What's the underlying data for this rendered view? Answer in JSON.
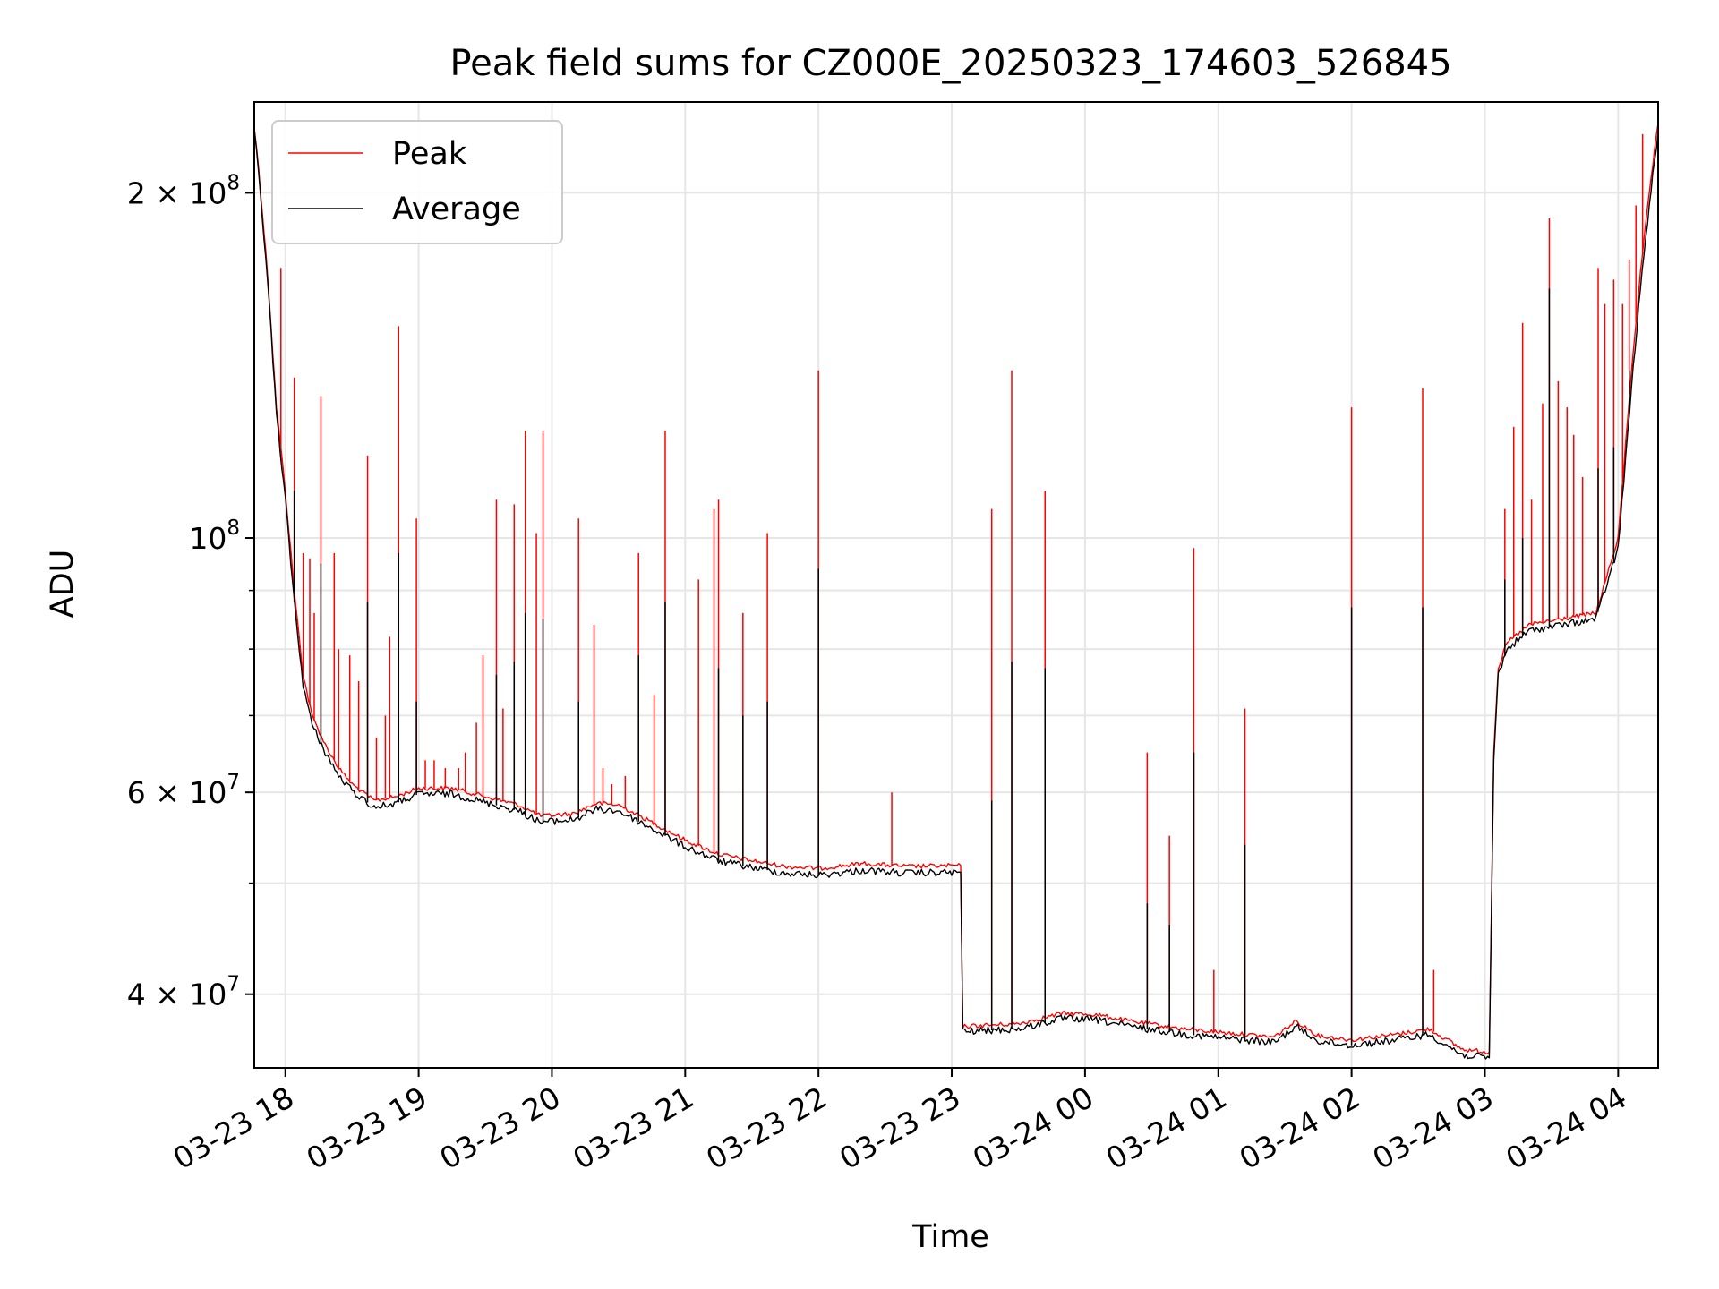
{
  "chart_data": {
    "type": "line",
    "title": "Peak field sums for CZ000E_20250323_174603_526845",
    "xlabel": "Time",
    "ylabel": "ADU",
    "yscale": "log",
    "ylim": [
      34500000,
      240000000
    ],
    "xlim": [
      "2025-03-23 17:46",
      "2025-03-24 04:18"
    ],
    "grid": true,
    "legend_position": "top-left",
    "x_ticks": [
      {
        "t": "2025-03-23 18:00",
        "label": "03-23 18"
      },
      {
        "t": "2025-03-23 19:00",
        "label": "03-23 19"
      },
      {
        "t": "2025-03-23 20:00",
        "label": "03-23 20"
      },
      {
        "t": "2025-03-23 21:00",
        "label": "03-23 21"
      },
      {
        "t": "2025-03-23 22:00",
        "label": "03-23 22"
      },
      {
        "t": "2025-03-23 23:00",
        "label": "03-23 23"
      },
      {
        "t": "2025-03-24 00:00",
        "label": "03-24 00"
      },
      {
        "t": "2025-03-24 01:00",
        "label": "03-24 01"
      },
      {
        "t": "2025-03-24 02:00",
        "label": "03-24 02"
      },
      {
        "t": "2025-03-24 03:00",
        "label": "03-24 03"
      },
      {
        "t": "2025-03-24 04:00",
        "label": "03-24 04"
      }
    ],
    "y_ticks_major": [
      {
        "v": 40000000,
        "base": "4 × 10",
        "exp": "7"
      },
      {
        "v": 60000000,
        "base": "6 × 10",
        "exp": "7"
      },
      {
        "v": 100000000,
        "base": "10",
        "exp": "8"
      },
      {
        "v": 200000000,
        "base": "2 × 10",
        "exp": "8"
      }
    ],
    "y_gridlines_minor": [
      50000000,
      70000000,
      80000000,
      90000000
    ],
    "series": [
      {
        "name": "Peak",
        "color": "#ff0000",
        "baseline": [
          [
            "2025-03-23 17:46",
            228000000
          ],
          [
            "2025-03-23 17:48",
            210000000
          ],
          [
            "2025-03-23 17:52",
            170000000
          ],
          [
            "2025-03-23 17:56",
            130000000
          ],
          [
            "2025-03-23 18:00",
            110000000
          ],
          [
            "2025-03-23 18:04",
            90000000
          ],
          [
            "2025-03-23 18:08",
            76000000
          ],
          [
            "2025-03-23 18:12",
            70000000
          ],
          [
            "2025-03-23 18:18",
            66000000
          ],
          [
            "2025-03-23 18:24",
            63000000
          ],
          [
            "2025-03-23 18:30",
            61000000
          ],
          [
            "2025-03-23 18:40",
            59000000
          ],
          [
            "2025-03-23 18:50",
            59500000
          ],
          [
            "2025-03-23 19:00",
            60500000
          ],
          [
            "2025-03-23 19:15",
            60500000
          ],
          [
            "2025-03-23 19:30",
            59500000
          ],
          [
            "2025-03-23 19:45",
            58500000
          ],
          [
            "2025-03-23 19:55",
            57200000
          ],
          [
            "2025-03-23 20:10",
            57500000
          ],
          [
            "2025-03-23 20:20",
            58700000
          ],
          [
            "2025-03-23 20:30",
            58500000
          ],
          [
            "2025-03-23 20:45",
            56500000
          ],
          [
            "2025-03-23 21:00",
            54500000
          ],
          [
            "2025-03-23 21:15",
            53000000
          ],
          [
            "2025-03-23 21:30",
            52300000
          ],
          [
            "2025-03-23 21:45",
            51700000
          ],
          [
            "2025-03-23 22:00",
            51500000
          ],
          [
            "2025-03-23 22:20",
            52000000
          ],
          [
            "2025-03-23 22:40",
            51700000
          ],
          [
            "2025-03-23 23:04",
            51800000
          ],
          [
            "2025-03-23 23:05",
            37500000
          ],
          [
            "2025-03-23 23:30",
            37700000
          ],
          [
            "2025-03-23 23:50",
            38500000
          ],
          [
            "2025-03-24 00:05",
            38400000
          ],
          [
            "2025-03-24 00:20",
            37900000
          ],
          [
            "2025-03-24 00:45",
            37300000
          ],
          [
            "2025-03-24 01:05",
            37000000
          ],
          [
            "2025-03-24 01:25",
            36700000
          ],
          [
            "2025-03-24 01:35",
            37900000
          ],
          [
            "2025-03-24 01:45",
            36800000
          ],
          [
            "2025-03-24 02:00",
            36500000
          ],
          [
            "2025-03-24 02:20",
            36900000
          ],
          [
            "2025-03-24 02:35",
            37300000
          ],
          [
            "2025-03-24 02:50",
            35800000
          ],
          [
            "2025-03-24 03:02",
            35600000
          ],
          [
            "2025-03-24 03:04",
            65000000
          ],
          [
            "2025-03-24 03:06",
            77000000
          ],
          [
            "2025-03-24 03:10",
            81000000
          ],
          [
            "2025-03-24 03:20",
            84000000
          ],
          [
            "2025-03-24 03:35",
            85000000
          ],
          [
            "2025-03-24 03:50",
            86000000
          ],
          [
            "2025-03-24 04:00",
            100000000
          ],
          [
            "2025-03-24 04:06",
            140000000
          ],
          [
            "2025-03-24 04:10",
            170000000
          ],
          [
            "2025-03-24 04:14",
            200000000
          ],
          [
            "2025-03-24 04:18",
            230000000
          ]
        ],
        "spikes": [
          [
            "2025-03-23 17:58",
            172000000
          ],
          [
            "2025-03-23 18:04",
            138000000
          ],
          [
            "2025-03-23 18:08",
            97000000
          ],
          [
            "2025-03-23 18:11",
            96000000
          ],
          [
            "2025-03-23 18:13",
            86000000
          ],
          [
            "2025-03-23 18:16",
            133000000
          ],
          [
            "2025-03-23 18:22",
            97000000
          ],
          [
            "2025-03-23 18:24",
            80000000
          ],
          [
            "2025-03-23 18:29",
            79000000
          ],
          [
            "2025-03-23 18:33",
            75000000
          ],
          [
            "2025-03-23 18:37",
            118000000
          ],
          [
            "2025-03-23 18:41",
            67000000
          ],
          [
            "2025-03-23 18:45",
            70000000
          ],
          [
            "2025-03-23 18:47",
            82000000
          ],
          [
            "2025-03-23 18:51",
            153000000
          ],
          [
            "2025-03-23 18:59",
            104000000
          ],
          [
            "2025-03-23 19:03",
            64000000
          ],
          [
            "2025-03-23 19:07",
            64000000
          ],
          [
            "2025-03-23 19:12",
            63000000
          ],
          [
            "2025-03-23 19:18",
            63000000
          ],
          [
            "2025-03-23 19:21",
            65000000
          ],
          [
            "2025-03-23 19:26",
            69000000
          ],
          [
            "2025-03-23 19:29",
            79000000
          ],
          [
            "2025-03-23 19:35",
            108000000
          ],
          [
            "2025-03-23 19:38",
            71000000
          ],
          [
            "2025-03-23 19:43",
            107000000
          ],
          [
            "2025-03-23 19:48",
            124000000
          ],
          [
            "2025-03-23 19:53",
            101000000
          ],
          [
            "2025-03-23 19:56",
            124000000
          ],
          [
            "2025-03-23 20:12",
            104000000
          ],
          [
            "2025-03-23 20:19",
            84000000
          ],
          [
            "2025-03-23 20:23",
            63000000
          ],
          [
            "2025-03-23 20:27",
            61000000
          ],
          [
            "2025-03-23 20:33",
            62000000
          ],
          [
            "2025-03-23 20:39",
            97000000
          ],
          [
            "2025-03-23 20:46",
            73000000
          ],
          [
            "2025-03-23 20:51",
            124000000
          ],
          [
            "2025-03-23 21:06",
            92000000
          ],
          [
            "2025-03-23 21:13",
            106000000
          ],
          [
            "2025-03-23 21:15",
            108000000
          ],
          [
            "2025-03-23 21:26",
            86000000
          ],
          [
            "2025-03-23 21:37",
            101000000
          ],
          [
            "2025-03-23 22:00",
            140000000
          ],
          [
            "2025-03-23 22:33",
            60000000
          ],
          [
            "2025-03-23 23:18",
            106000000
          ],
          [
            "2025-03-23 23:27",
            140000000
          ],
          [
            "2025-03-23 23:42",
            110000000
          ],
          [
            "2025-03-24 00:28",
            65000000
          ],
          [
            "2025-03-24 00:38",
            55000000
          ],
          [
            "2025-03-24 00:49",
            98000000
          ],
          [
            "2025-03-24 00:58",
            42000000
          ],
          [
            "2025-03-24 01:12",
            71000000
          ],
          [
            "2025-03-24 02:00",
            130000000
          ],
          [
            "2025-03-24 02:32",
            135000000
          ],
          [
            "2025-03-24 02:37",
            42000000
          ],
          [
            "2025-03-24 03:09",
            106000000
          ],
          [
            "2025-03-24 03:13",
            125000000
          ],
          [
            "2025-03-24 03:17",
            154000000
          ],
          [
            "2025-03-24 03:21",
            108000000
          ],
          [
            "2025-03-24 03:26",
            131000000
          ],
          [
            "2025-03-24 03:29",
            190000000
          ],
          [
            "2025-03-24 03:33",
            137000000
          ],
          [
            "2025-03-24 03:37",
            130000000
          ],
          [
            "2025-03-24 03:40",
            123000000
          ],
          [
            "2025-03-24 03:44",
            113000000
          ],
          [
            "2025-03-24 03:51",
            172000000
          ],
          [
            "2025-03-24 03:54",
            160000000
          ],
          [
            "2025-03-24 03:58",
            168000000
          ],
          [
            "2025-03-24 04:02",
            160000000
          ],
          [
            "2025-03-24 04:05",
            175000000
          ],
          [
            "2025-03-24 04:08",
            195000000
          ],
          [
            "2025-03-24 04:11",
            225000000
          ]
        ]
      },
      {
        "name": "Average",
        "color": "#000000",
        "baseline": [
          [
            "2025-03-23 17:46",
            226000000
          ],
          [
            "2025-03-23 17:48",
            208000000
          ],
          [
            "2025-03-23 17:52",
            168000000
          ],
          [
            "2025-03-23 17:56",
            128000000
          ],
          [
            "2025-03-23 18:00",
            108000000
          ],
          [
            "2025-03-23 18:04",
            88000000
          ],
          [
            "2025-03-23 18:08",
            74500000
          ],
          [
            "2025-03-23 18:12",
            68700000
          ],
          [
            "2025-03-23 18:18",
            65000000
          ],
          [
            "2025-03-23 18:24",
            62000000
          ],
          [
            "2025-03-23 18:30",
            60200000
          ],
          [
            "2025-03-23 18:40",
            58200000
          ],
          [
            "2025-03-23 18:50",
            58700000
          ],
          [
            "2025-03-23 19:00",
            59800000
          ],
          [
            "2025-03-23 19:15",
            59800000
          ],
          [
            "2025-03-23 19:30",
            58800000
          ],
          [
            "2025-03-23 19:45",
            57800000
          ],
          [
            "2025-03-23 19:55",
            56500000
          ],
          [
            "2025-03-23 20:10",
            56800000
          ],
          [
            "2025-03-23 20:20",
            58000000
          ],
          [
            "2025-03-23 20:30",
            57800000
          ],
          [
            "2025-03-23 20:45",
            55800000
          ],
          [
            "2025-03-23 21:00",
            53800000
          ],
          [
            "2025-03-23 21:15",
            52300000
          ],
          [
            "2025-03-23 21:30",
            51600000
          ],
          [
            "2025-03-23 21:45",
            51000000
          ],
          [
            "2025-03-23 22:00",
            50800000
          ],
          [
            "2025-03-23 22:20",
            51300000
          ],
          [
            "2025-03-23 22:40",
            51000000
          ],
          [
            "2025-03-23 23:04",
            51100000
          ],
          [
            "2025-03-23 23:05",
            37100000
          ],
          [
            "2025-03-23 23:30",
            37300000
          ],
          [
            "2025-03-23 23:50",
            38100000
          ],
          [
            "2025-03-24 00:05",
            38000000
          ],
          [
            "2025-03-24 00:20",
            37500000
          ],
          [
            "2025-03-24 00:45",
            36900000
          ],
          [
            "2025-03-24 01:05",
            36600000
          ],
          [
            "2025-03-24 01:25",
            36300000
          ],
          [
            "2025-03-24 01:35",
            37500000
          ],
          [
            "2025-03-24 01:45",
            36400000
          ],
          [
            "2025-03-24 02:00",
            36100000
          ],
          [
            "2025-03-24 02:20",
            36500000
          ],
          [
            "2025-03-24 02:35",
            36900000
          ],
          [
            "2025-03-24 02:50",
            35400000
          ],
          [
            "2025-03-24 03:02",
            35200000
          ],
          [
            "2025-03-24 03:04",
            64000000
          ],
          [
            "2025-03-24 03:06",
            76000000
          ],
          [
            "2025-03-24 03:10",
            80000000
          ],
          [
            "2025-03-24 03:20",
            83000000
          ],
          [
            "2025-03-24 03:35",
            84000000
          ],
          [
            "2025-03-24 03:50",
            85000000
          ],
          [
            "2025-03-24 04:00",
            98000000
          ],
          [
            "2025-03-24 04:06",
            135000000
          ],
          [
            "2025-03-24 04:10",
            165000000
          ],
          [
            "2025-03-24 04:14",
            195000000
          ],
          [
            "2025-03-24 04:18",
            226000000
          ]
        ],
        "spikes": [
          [
            "2025-03-23 18:04",
            110000000
          ],
          [
            "2025-03-23 18:16",
            95000000
          ],
          [
            "2025-03-23 18:37",
            88000000
          ],
          [
            "2025-03-23 18:51",
            97000000
          ],
          [
            "2025-03-23 18:59",
            72000000
          ],
          [
            "2025-03-23 19:35",
            76000000
          ],
          [
            "2025-03-23 19:43",
            78000000
          ],
          [
            "2025-03-23 19:48",
            86000000
          ],
          [
            "2025-03-23 19:56",
            85000000
          ],
          [
            "2025-03-23 20:12",
            72000000
          ],
          [
            "2025-03-23 20:39",
            79000000
          ],
          [
            "2025-03-23 20:51",
            88000000
          ],
          [
            "2025-03-23 21:15",
            77000000
          ],
          [
            "2025-03-23 21:26",
            70000000
          ],
          [
            "2025-03-23 21:37",
            72000000
          ],
          [
            "2025-03-23 22:00",
            94000000
          ],
          [
            "2025-03-23 23:18",
            59000000
          ],
          [
            "2025-03-23 23:27",
            78000000
          ],
          [
            "2025-03-23 23:42",
            77000000
          ],
          [
            "2025-03-24 00:28",
            48000000
          ],
          [
            "2025-03-24 00:38",
            46000000
          ],
          [
            "2025-03-24 00:49",
            65000000
          ],
          [
            "2025-03-24 01:12",
            54000000
          ],
          [
            "2025-03-24 02:00",
            87000000
          ],
          [
            "2025-03-24 02:32",
            87000000
          ],
          [
            "2025-03-24 03:09",
            92000000
          ],
          [
            "2025-03-24 03:17",
            100000000
          ],
          [
            "2025-03-24 03:29",
            165000000
          ],
          [
            "2025-03-24 03:51",
            115000000
          ],
          [
            "2025-03-24 03:58",
            120000000
          ],
          [
            "2025-03-24 04:05",
            140000000
          ]
        ]
      }
    ]
  }
}
